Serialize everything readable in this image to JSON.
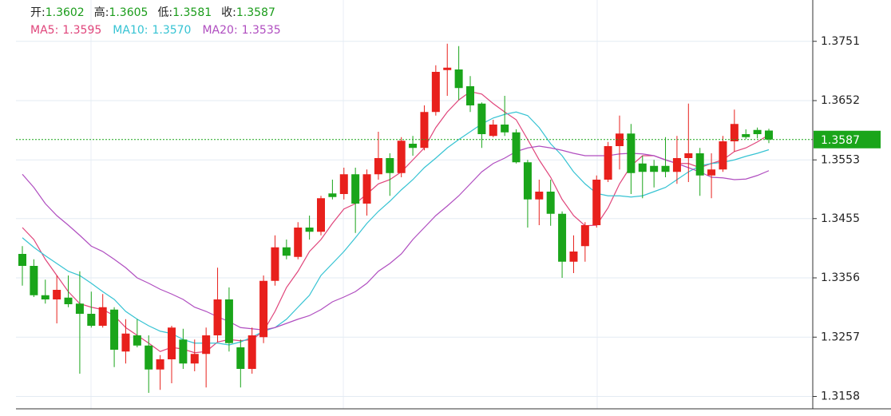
{
  "chart_data": {
    "type": "candlestick",
    "ohlc_header": [
      {
        "label": "开:",
        "value": 1.3602
      },
      {
        "label": "高:",
        "value": 1.3605
      },
      {
        "label": "低:",
        "value": 1.3581
      },
      {
        "label": "收:",
        "value": 1.3587
      }
    ],
    "up_color": "#e8201c",
    "down_color": "#1aa51a",
    "header_value_color": "#1a9c1a",
    "open": [
      1.3396,
      1.3376,
      1.3327,
      1.332,
      1.3323,
      1.3313,
      1.3296,
      1.3276,
      1.3303,
      1.3233,
      1.326,
      1.3243,
      1.3203,
      1.322,
      1.3253,
      1.3213,
      1.3229,
      1.326,
      1.332,
      1.324,
      1.3204,
      1.3257,
      1.3351,
      1.3407,
      1.3391,
      1.344,
      1.3433,
      1.3497,
      1.3496,
      1.3529,
      1.348,
      1.3529,
      1.3556,
      1.3531,
      1.358,
      1.3573,
      1.3633,
      1.3703,
      1.3704,
      1.3676,
      1.3647,
      1.3593,
      1.3612,
      1.3599,
      1.3549,
      1.3487,
      1.35,
      1.3463,
      1.3383,
      1.3409,
      1.3444,
      1.352,
      1.3576,
      1.3597,
      1.3547,
      1.3543,
      1.3543,
      1.3533,
      1.3556,
      1.3564,
      1.3527,
      1.3537,
      1.3584,
      1.3596,
      1.3603,
      1.3602
    ],
    "high": [
      1.3409,
      1.3387,
      1.3353,
      1.336,
      1.336,
      1.3367,
      1.3333,
      1.3329,
      1.3307,
      1.3287,
      1.3287,
      1.326,
      1.3227,
      1.3276,
      1.3271,
      1.3253,
      1.3273,
      1.3373,
      1.334,
      1.3253,
      1.3273,
      1.336,
      1.3427,
      1.342,
      1.3449,
      1.346,
      1.3493,
      1.352,
      1.354,
      1.354,
      1.3537,
      1.36,
      1.3564,
      1.3591,
      1.3593,
      1.3644,
      1.3711,
      1.3747,
      1.3743,
      1.3693,
      1.3649,
      1.362,
      1.366,
      1.3604,
      1.3553,
      1.352,
      1.352,
      1.3467,
      1.3427,
      1.3449,
      1.3527,
      1.3583,
      1.3627,
      1.3613,
      1.356,
      1.3553,
      1.3591,
      1.3593,
      1.3647,
      1.3573,
      1.3564,
      1.3593,
      1.3637,
      1.3604,
      1.3607,
      1.3605
    ],
    "low": [
      1.3343,
      1.3324,
      1.3313,
      1.328,
      1.3307,
      1.3196,
      1.3273,
      1.3273,
      1.3207,
      1.3213,
      1.324,
      1.3164,
      1.3169,
      1.318,
      1.3204,
      1.32,
      1.3173,
      1.3249,
      1.3233,
      1.3173,
      1.3196,
      1.3247,
      1.3343,
      1.3387,
      1.3387,
      1.342,
      1.3427,
      1.3487,
      1.3487,
      1.3431,
      1.346,
      1.352,
      1.3493,
      1.3524,
      1.356,
      1.3569,
      1.3627,
      1.366,
      1.3653,
      1.3633,
      1.3573,
      1.3591,
      1.3593,
      1.3547,
      1.344,
      1.3444,
      1.3443,
      1.3356,
      1.3364,
      1.3383,
      1.344,
      1.3516,
      1.3537,
      1.3496,
      1.3489,
      1.3507,
      1.3524,
      1.3513,
      1.3516,
      1.3493,
      1.3489,
      1.3533,
      1.3567,
      1.3588,
      1.3589,
      1.3581
    ],
    "close": [
      1.3376,
      1.3327,
      1.332,
      1.3336,
      1.3312,
      1.3296,
      1.3276,
      1.3307,
      1.3236,
      1.3263,
      1.3243,
      1.3203,
      1.322,
      1.3273,
      1.3213,
      1.3229,
      1.326,
      1.332,
      1.3247,
      1.3204,
      1.326,
      1.3351,
      1.3407,
      1.3393,
      1.344,
      1.3433,
      1.3489,
      1.3491,
      1.3529,
      1.348,
      1.3529,
      1.3556,
      1.3531,
      1.3585,
      1.3573,
      1.3633,
      1.37,
      1.3707,
      1.3673,
      1.3644,
      1.3596,
      1.3612,
      1.3599,
      1.3549,
      1.3487,
      1.35,
      1.3463,
      1.3383,
      1.34,
      1.3444,
      1.352,
      1.3576,
      1.3597,
      1.3531,
      1.3533,
      1.3533,
      1.3533,
      1.3556,
      1.3564,
      1.3527,
      1.3537,
      1.3584,
      1.3613,
      1.3591,
      1.3596,
      1.3587
    ],
    "series": [
      {
        "name": "MA5:",
        "color": "#e0457b",
        "value_label": 1.3595,
        "values": [
          1.344,
          1.342,
          1.3387,
          1.336,
          1.3333,
          1.3313,
          1.3307,
          1.3303,
          1.3293,
          1.3273,
          1.326,
          1.3247,
          1.3233,
          1.324,
          1.3237,
          1.3231,
          1.3233,
          1.3249,
          1.3253,
          1.3251,
          1.3253,
          1.3267,
          1.33,
          1.334,
          1.3367,
          1.34,
          1.342,
          1.3447,
          1.3471,
          1.348,
          1.3496,
          1.3513,
          1.352,
          1.3533,
          1.3553,
          1.3573,
          1.3607,
          1.3633,
          1.3653,
          1.3667,
          1.3663,
          1.3647,
          1.3633,
          1.362,
          1.3587,
          1.3553,
          1.3524,
          1.3487,
          1.346,
          1.3443,
          1.3444,
          1.3473,
          1.3513,
          1.3543,
          1.356,
          1.356,
          1.3553,
          1.3547,
          1.3547,
          1.354,
          1.3547,
          1.3553,
          1.3567,
          1.3573,
          1.3583,
          1.3595
        ]
      },
      {
        "name": "MA10:",
        "color": "#36c3d3",
        "value_label": {
          "value": 1.357,
          "label": "1.3570"
        },
        "values": [
          1.3423,
          1.3407,
          1.3393,
          1.338,
          1.3367,
          1.336,
          1.3347,
          1.3333,
          1.332,
          1.33,
          1.3287,
          1.3276,
          1.3267,
          1.3263,
          1.3253,
          1.3247,
          1.3247,
          1.3247,
          1.3244,
          1.3249,
          1.3257,
          1.3267,
          1.3273,
          1.3287,
          1.3307,
          1.3327,
          1.336,
          1.338,
          1.34,
          1.3423,
          1.3447,
          1.3467,
          1.3484,
          1.3503,
          1.352,
          1.354,
          1.3556,
          1.3573,
          1.3587,
          1.36,
          1.3613,
          1.3623,
          1.3629,
          1.3633,
          1.3627,
          1.3607,
          1.358,
          1.356,
          1.3533,
          1.3513,
          1.3497,
          1.3493,
          1.3493,
          1.3491,
          1.3493,
          1.35,
          1.3507,
          1.352,
          1.3533,
          1.3543,
          1.3547,
          1.3549,
          1.3553,
          1.3559,
          1.3564,
          1.357
        ]
      },
      {
        "name": "MA20:",
        "color": "#b04ec0",
        "value_label": 1.3535,
        "values": [
          1.3529,
          1.3507,
          1.348,
          1.346,
          1.3444,
          1.3427,
          1.3409,
          1.34,
          1.3387,
          1.3373,
          1.3356,
          1.3347,
          1.3337,
          1.3329,
          1.332,
          1.3307,
          1.33,
          1.3291,
          1.3283,
          1.3273,
          1.3271,
          1.3269,
          1.3273,
          1.328,
          1.3287,
          1.3293,
          1.3303,
          1.3316,
          1.3324,
          1.3333,
          1.3347,
          1.3367,
          1.338,
          1.3396,
          1.342,
          1.344,
          1.346,
          1.3476,
          1.3493,
          1.3513,
          1.3533,
          1.3547,
          1.3556,
          1.3567,
          1.3573,
          1.3576,
          1.3573,
          1.3569,
          1.3564,
          1.356,
          1.356,
          1.356,
          1.3563,
          1.3564,
          1.3563,
          1.356,
          1.3553,
          1.3547,
          1.354,
          1.3533,
          1.3524,
          1.3523,
          1.352,
          1.3521,
          1.3527,
          1.3535
        ]
      }
    ],
    "last_price": 1.3587,
    "last_price_color": "#1aa51a",
    "ylim": [
      1.3141,
      1.382
    ],
    "yticks": [
      1.3158,
      1.3257,
      1.3356,
      1.3455,
      1.3553,
      1.3652,
      1.3751
    ],
    "grid": true
  }
}
